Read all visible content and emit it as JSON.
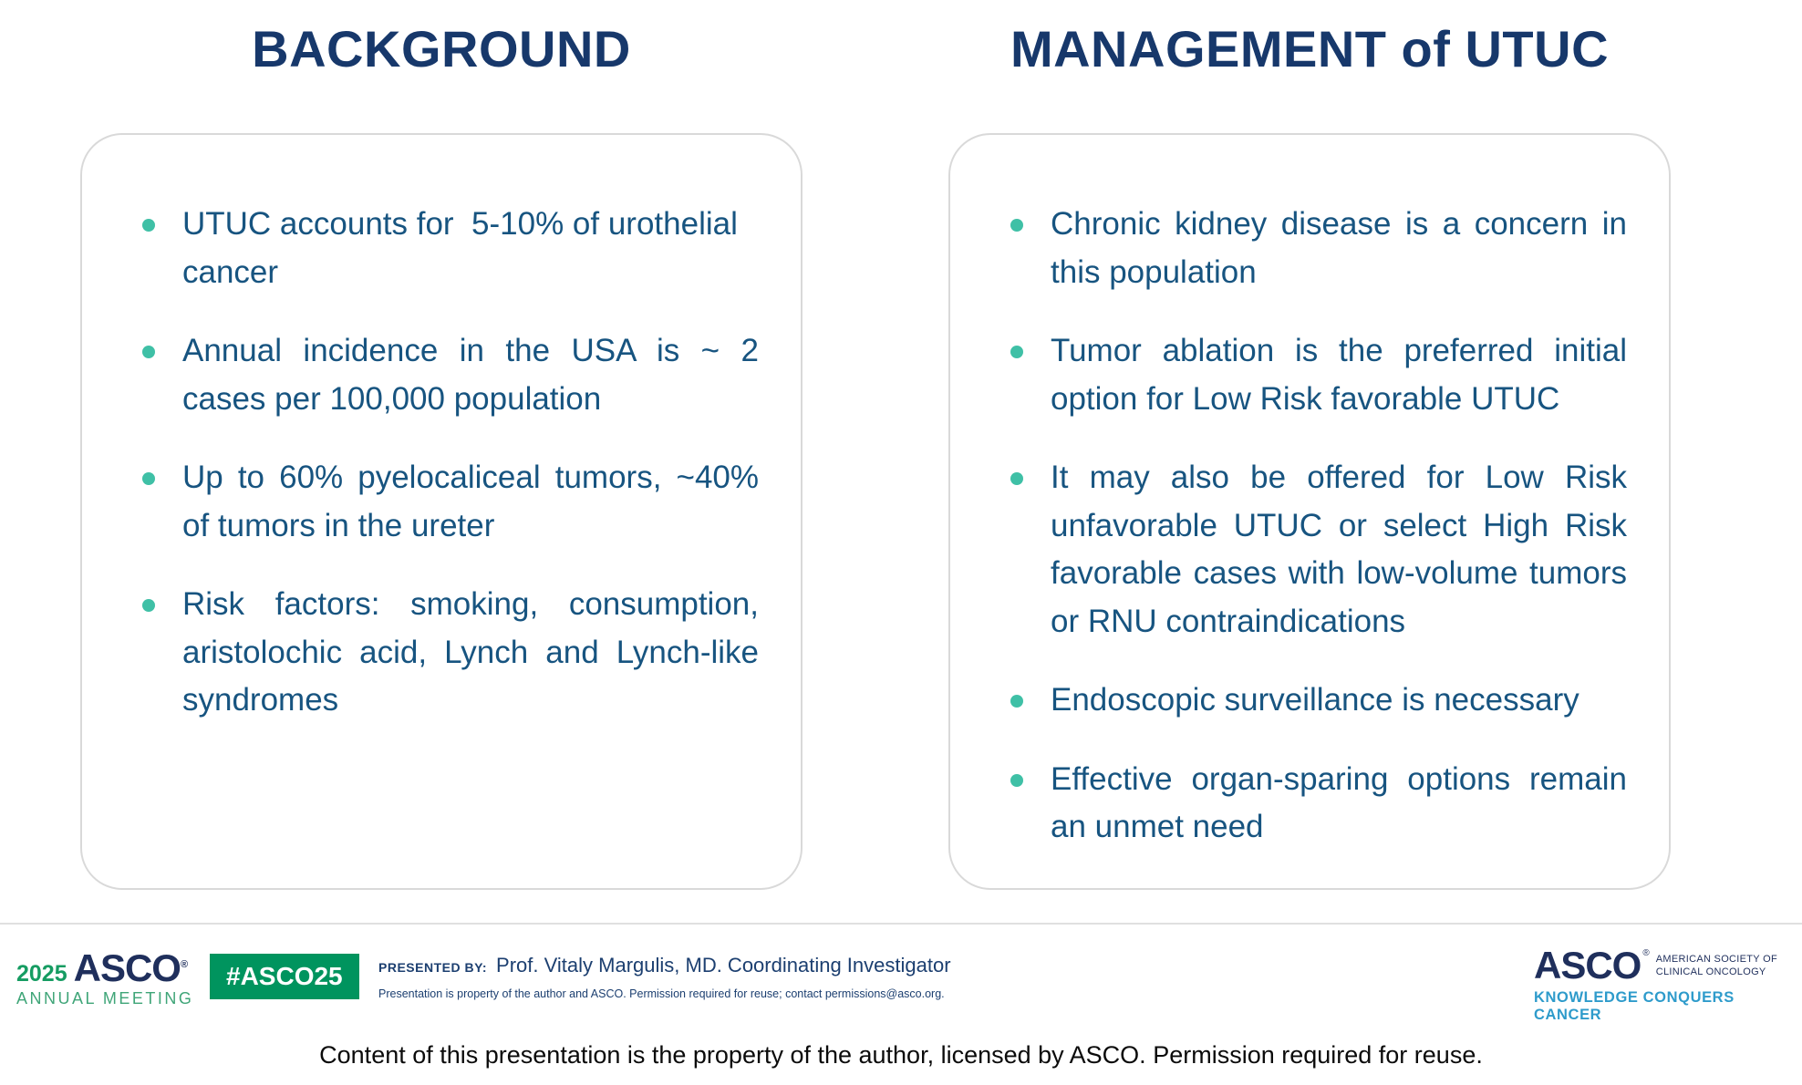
{
  "slide": {
    "left_panel": {
      "title": "BACKGROUND",
      "bullets": [
        "UTUC accounts for  5-10% of urothelial cancer",
        "Annual incidence in the USA is ~ 2 cases per 100,000 population",
        "Up to 60% pyelocaliceal tumors, ~40% of tumors in the ureter",
        "Risk factors: smoking, consumption, aristolochic acid, Lynch and Lynch-like syndromes"
      ]
    },
    "right_panel": {
      "title": "MANAGEMENT of UTUC",
      "bullets": [
        "Chronic kidney disease is a concern in this population",
        "Tumor ablation is the preferred initial option for Low Risk favorable UTUC",
        "It may also be offered for Low Risk unfavorable UTUC or select High Risk favorable cases with low-volume tumors or RNU contraindications",
        "Endoscopic surveillance is necessary",
        "Effective organ-sparing options remain an unmet need"
      ]
    }
  },
  "footer": {
    "meeting_logo": {
      "year": "2025",
      "wordmark": "ASCO",
      "registered_mark": "®",
      "subtitle": "ANNUAL MEETING"
    },
    "hashtag_badge": "#ASCO25",
    "presented_by_label": "PRESENTED BY:",
    "presenter": "Prof. Vitaly Margulis, MD. Coordinating Investigator",
    "disclaimer": "Presentation is property of the author and ASCO. Permission required for reuse; contact permissions@asco.org.",
    "society_logo": {
      "wordmark": "ASCO",
      "registered_mark": "®",
      "society_line1": "AMERICAN SOCIETY OF",
      "society_line2": "CLINICAL ONCOLOGY",
      "tagline": "KNOWLEDGE CONQUERS CANCER"
    }
  },
  "copyright": "Content of this presentation is the property of the author, licensed by ASCO. Permission required for reuse.",
  "colors": {
    "title-navy": "#17386b",
    "body-blue": "#175480",
    "bullet-teal": "#3fc0a6",
    "panel-border": "#d9d9d9",
    "badge-green": "#00945e",
    "logo-green": "#169c62",
    "logo-light-green": "#3fa578",
    "logo-navy": "#1f2f5c",
    "footer-navy": "#1c3f70",
    "tagline-blue": "#2e9bcb"
  }
}
